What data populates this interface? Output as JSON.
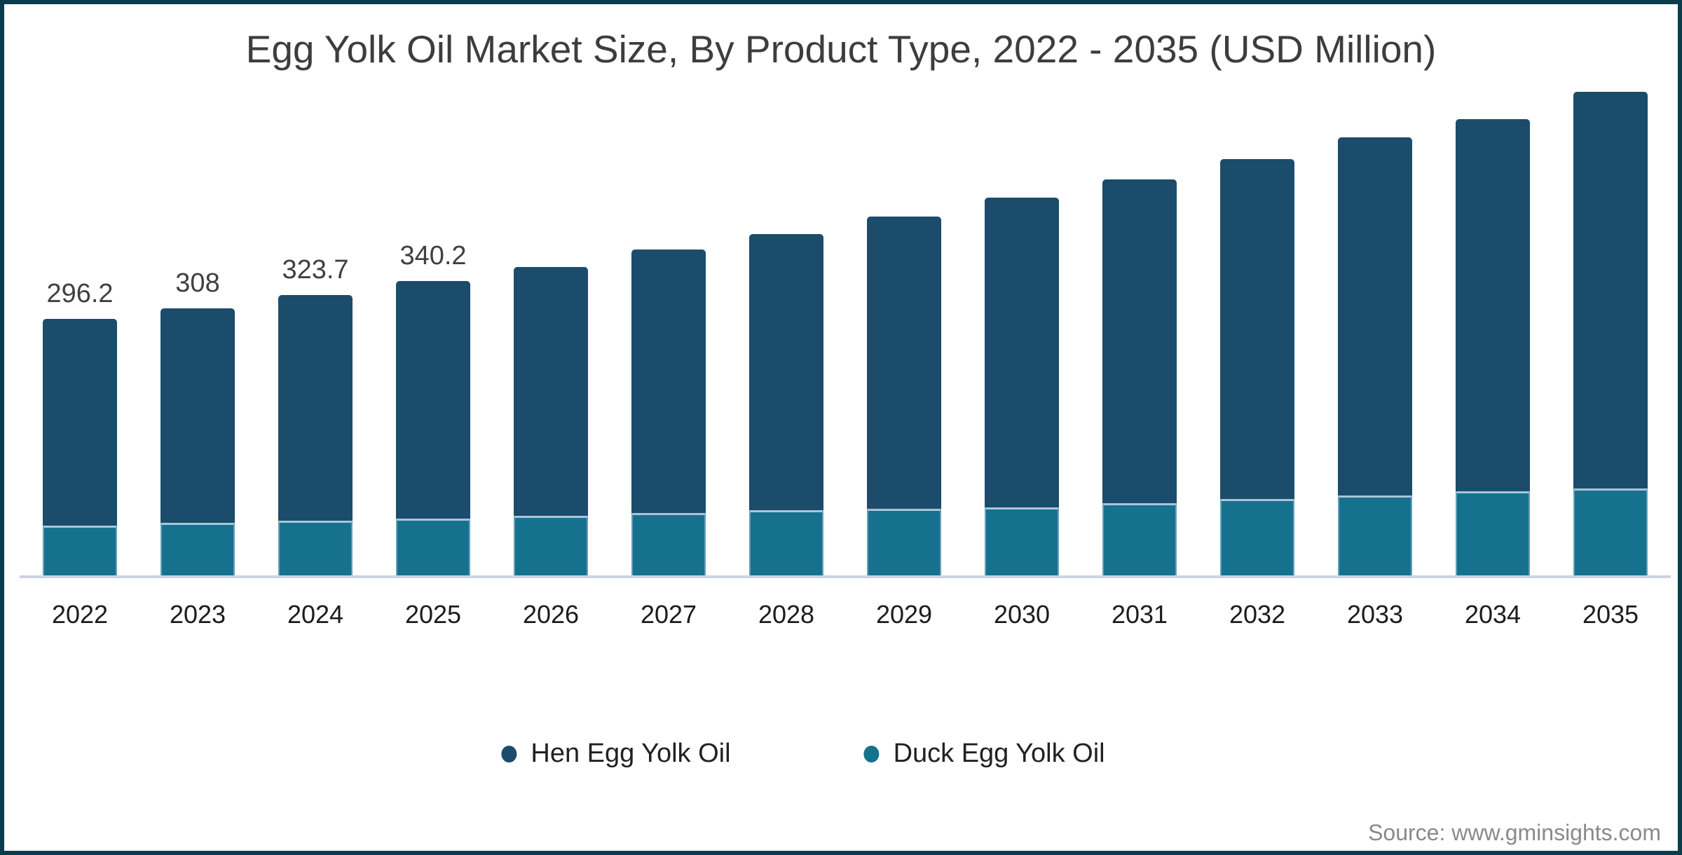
{
  "title": "Egg Yolk Oil Market Size, By Product Type, 2022 - 2035 (USD Million)",
  "source": "Source: www.gminsights.com",
  "legend": {
    "items": [
      {
        "label": "Hen Egg Yolk Oil",
        "color": "#1c4c6c"
      },
      {
        "label": "Duck Egg Yolk Oil",
        "color": "#16718f"
      }
    ]
  },
  "colors": {
    "hen_segment": "#1c4c6c",
    "duck_segment": "#16718f",
    "frame_border": "#0b3c4d",
    "axis_line": "#ccd3e2",
    "segment_separator": "#a9c6d8",
    "title_text": "#3d3d3d",
    "source_text": "#8a8a8a"
  },
  "chart_data": {
    "type": "bar",
    "stacked": true,
    "title": "Egg Yolk Oil Market Size, By Product Type, 2022 - 2035 (USD Million)",
    "unit": "USD Million",
    "xlabel": "",
    "ylabel": "",
    "grid": false,
    "y_axis_shown": false,
    "baseline": 0,
    "legend_position": "bottom",
    "categories": [
      "2022",
      "2023",
      "2024",
      "2025",
      "2026",
      "2027",
      "2028",
      "2029",
      "2030",
      "2031",
      "2032",
      "2033",
      "2034",
      "2035"
    ],
    "series": [
      {
        "name": "Hen Egg Yolk Oil",
        "color": "#1c4c6c",
        "values": [
          238.7,
          247.5,
          260.6,
          274.6,
          287.3,
          304.3,
          318.8,
          337.5,
          357.7,
          373.9,
          392.5,
          413.5,
          429.8,
          458.0
        ]
      },
      {
        "name": "Duck Egg Yolk Oil",
        "color": "#16718f",
        "values": [
          57.5,
          60.5,
          63.1,
          65.6,
          68.8,
          72.0,
          75.3,
          76.9,
          78.5,
          83.4,
          88.2,
          92.3,
          97.1,
          100.4
        ]
      }
    ],
    "totals": [
      296.2,
      308,
      323.7,
      340.2,
      356.1,
      376.3,
      394.1,
      414.4,
      436.2,
      457.3,
      480.7,
      505.8,
      526.9,
      558.4
    ],
    "total_labels": [
      "296.2",
      "308",
      "323.7",
      "340.2",
      "",
      "",
      "",
      "",
      "",
      "",
      "",
      "",
      "",
      ""
    ]
  }
}
